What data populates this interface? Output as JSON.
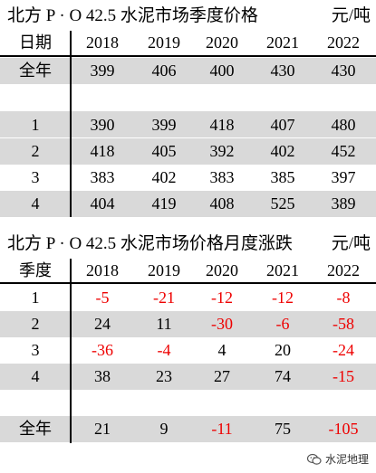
{
  "table1": {
    "title": "北方 P · O 42.5 水泥市场季度价格",
    "unit": "元/吨",
    "corner_label": "日期",
    "years": [
      "2018",
      "2019",
      "2020",
      "2021",
      "2022"
    ],
    "rows": [
      {
        "label": "全年",
        "values": [
          "399",
          "406",
          "400",
          "430",
          "430"
        ]
      },
      {
        "label": "",
        "values": [
          "",
          "",
          "",
          "",
          ""
        ]
      },
      {
        "label": "1",
        "values": [
          "390",
          "399",
          "418",
          "407",
          "480"
        ]
      },
      {
        "label": "2",
        "values": [
          "418",
          "405",
          "392",
          "402",
          "452"
        ]
      },
      {
        "label": "3",
        "values": [
          "383",
          "402",
          "383",
          "385",
          "397"
        ]
      },
      {
        "label": "4",
        "values": [
          "404",
          "419",
          "408",
          "525",
          "389"
        ]
      }
    ]
  },
  "table2": {
    "title": "北方 P · O 42.5 水泥市场价格月度涨跌",
    "unit": "元/吨",
    "corner_label": "季度",
    "years": [
      "2018",
      "2019",
      "2020",
      "2021",
      "2022"
    ],
    "rows": [
      {
        "label": "1",
        "values": [
          "-5",
          "-21",
          "-12",
          "-12",
          "-8"
        ]
      },
      {
        "label": "2",
        "values": [
          "24",
          "11",
          "-30",
          "-6",
          "-58"
        ]
      },
      {
        "label": "3",
        "values": [
          "-36",
          "-4",
          "4",
          "20",
          "-24"
        ]
      },
      {
        "label": "4",
        "values": [
          "38",
          "23",
          "27",
          "74",
          "-15"
        ]
      },
      {
        "label": "",
        "values": [
          "",
          "",
          "",
          "",
          ""
        ]
      },
      {
        "label": "全年",
        "values": [
          "21",
          "9",
          "-11",
          "75",
          "-105"
        ]
      }
    ],
    "negative_color": "#ee0000"
  },
  "colors": {
    "shade": "#d9d9d9",
    "text": "#000000"
  },
  "watermark": {
    "text": "水泥地理",
    "icon": "wechat-icon"
  }
}
